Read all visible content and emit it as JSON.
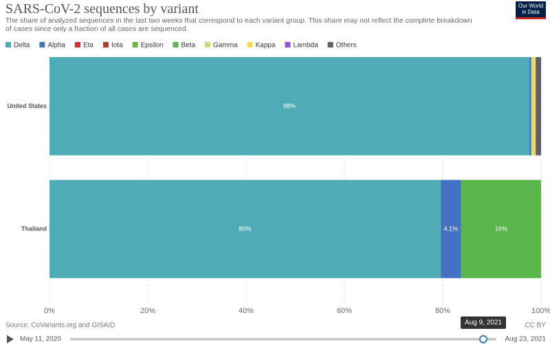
{
  "chart_data": {
    "type": "stacked-bar-horizontal",
    "title": "SARS-CoV-2 sequences by variant",
    "subtitle": "The share of analyzed sequences in the last two weeks that correspond to each variant group. This share may not reflect the complete breakdown of cases since only a fraction of all cases are sequenced.",
    "categories": [
      "United States",
      "Thailand"
    ],
    "series": [
      {
        "name": "Delta",
        "color": "#4fabb5",
        "values": [
          97.6,
          79.6
        ],
        "value_labels": [
          "98%",
          "80%"
        ]
      },
      {
        "name": "Alpha",
        "color": "#4471c3",
        "values": [
          0.4,
          4.1
        ],
        "value_labels": [
          null,
          "4.1%"
        ]
      },
      {
        "name": "Eta",
        "color": "#d42d35",
        "values": [
          0,
          0
        ]
      },
      {
        "name": "Iota",
        "color": "#b23a2f",
        "values": [
          0,
          0
        ]
      },
      {
        "name": "Epsilon",
        "color": "#6cb93d",
        "values": [
          0,
          0
        ]
      },
      {
        "name": "Beta",
        "color": "#58b64a",
        "values": [
          0,
          16.3
        ],
        "value_labels": [
          null,
          "16%"
        ]
      },
      {
        "name": "Gamma",
        "color": "#c8dc7e",
        "values": [
          0.3,
          0
        ]
      },
      {
        "name": "Kappa",
        "color": "#f5d94c",
        "values": [
          0.6,
          0
        ]
      },
      {
        "name": "Lambda",
        "color": "#8f55d0",
        "values": [
          0,
          0
        ]
      },
      {
        "name": "Others",
        "color": "#5f5f68",
        "values": [
          1.1,
          0
        ]
      }
    ],
    "xlim": [
      0,
      100
    ],
    "xticks": [
      {
        "value": 0,
        "label": "0%"
      },
      {
        "value": 20,
        "label": "20%"
      },
      {
        "value": 40,
        "label": "40%"
      },
      {
        "value": 60,
        "label": "60%"
      },
      {
        "value": 80,
        "label": "80%"
      },
      {
        "value": 100,
        "label": "100%"
      }
    ],
    "grid": true,
    "legend": "top"
  },
  "logo": "Our World in Data",
  "footer": {
    "source": "Source: CoVariants.org and GISAID",
    "license": "CC BY"
  },
  "timeline": {
    "start": "May 11, 2020",
    "current": "Aug 9, 2021",
    "end": "Aug 23, 2021"
  }
}
